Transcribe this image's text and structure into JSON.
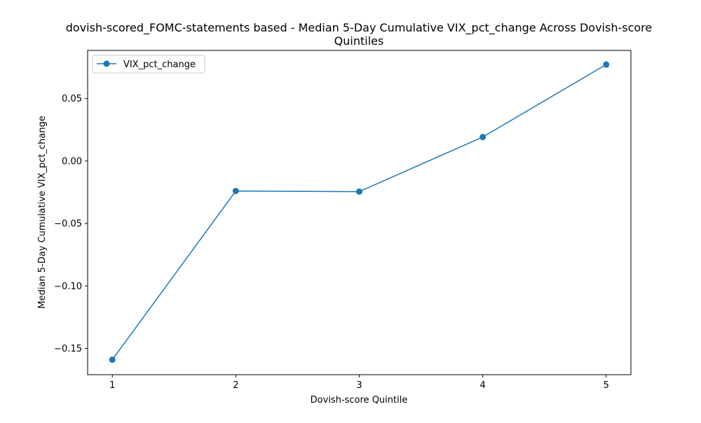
{
  "chart_data": {
    "type": "line",
    "title_line1": "dovish-scored_FOMC-statements based - Median 5-Day Cumulative VIX_pct_change Across Dovish-score",
    "title_line2": "Quintiles",
    "xlabel": "Dovish-score Quintile",
    "ylabel": "Median 5-Day Cumulative VIX_pct_change",
    "x": [
      1,
      2,
      3,
      4,
      5
    ],
    "x_tick_labels": [
      "1",
      "2",
      "3",
      "4",
      "5"
    ],
    "xlim": [
      0.8,
      5.2
    ],
    "ylim": [
      -0.171,
      0.0885
    ],
    "y_ticks": [
      -0.15,
      -0.1,
      -0.05,
      0.0,
      0.05
    ],
    "y_tick_labels": [
      "−0.15",
      "−0.10",
      "−0.05",
      "0.00",
      "0.05"
    ],
    "grid": false,
    "legend_position": "top-left",
    "series": [
      {
        "name": "VIX_pct_change",
        "values": [
          -0.159,
          -0.024,
          -0.0245,
          0.0192,
          0.0772
        ],
        "color": "#1f77b4",
        "marker": "circle"
      }
    ]
  }
}
